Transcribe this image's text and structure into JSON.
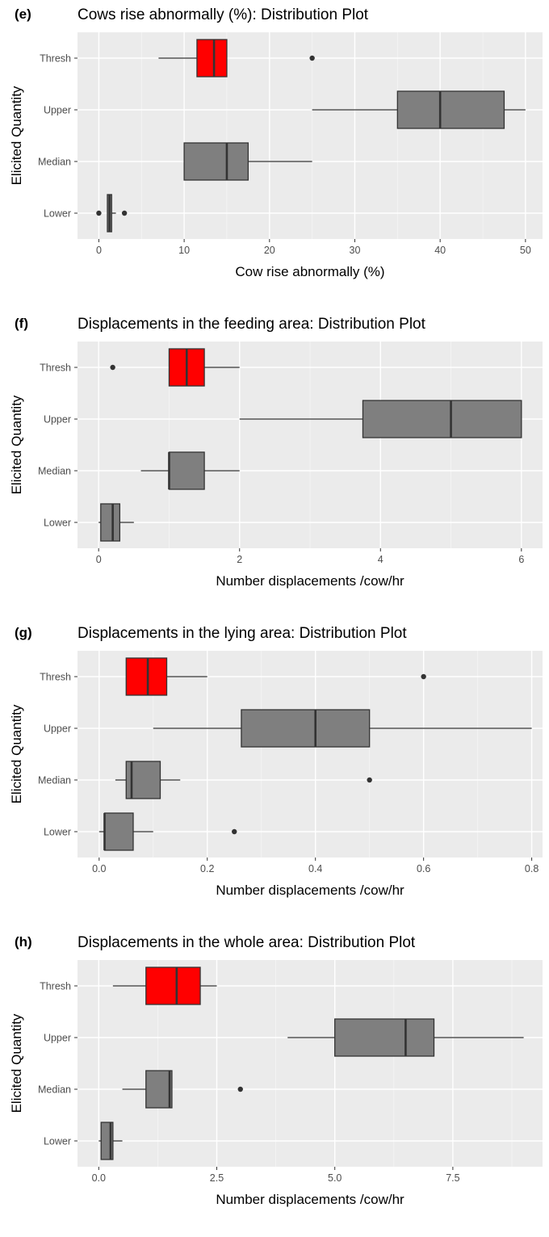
{
  "chart_data": [
    {
      "panel": "(e)",
      "type": "boxplot",
      "orientation": "horizontal",
      "title": "Cows rise abnormally (%): Distribution Plot",
      "xlabel": "Cow rise abnormally (%)",
      "ylabel": "Elicited Quantity",
      "xlim": [
        -2.5,
        52
      ],
      "xticks": [
        {
          "value": 0,
          "label": "0"
        },
        {
          "value": 10,
          "label": "10"
        },
        {
          "value": 20,
          "label": "20"
        },
        {
          "value": 30,
          "label": "30"
        },
        {
          "value": 40,
          "label": "40"
        },
        {
          "value": 50,
          "label": "50"
        }
      ],
      "grid": true,
      "categories": [
        "Thresh",
        "Upper",
        "Median",
        "Lower"
      ],
      "boxes": [
        {
          "category": "Thresh",
          "min": 7,
          "q1": 11.5,
          "median": 13.5,
          "q3": 15,
          "max": 15,
          "outliers": [
            25
          ],
          "color": "#ff0000"
        },
        {
          "category": "Upper",
          "min": 25,
          "q1": 35,
          "median": 40,
          "q3": 47.5,
          "max": 50,
          "outliers": [],
          "color": "#7f7f7f"
        },
        {
          "category": "Median",
          "min": 10,
          "q1": 10,
          "median": 15,
          "q3": 17.5,
          "max": 25,
          "outliers": [],
          "color": "#7f7f7f"
        },
        {
          "category": "Lower",
          "min": 1,
          "q1": 1,
          "median": 1.25,
          "q3": 1.5,
          "max": 2,
          "outliers": [
            0,
            3
          ],
          "color": "#7f7f7f"
        }
      ]
    },
    {
      "panel": "(f)",
      "type": "boxplot",
      "orientation": "horizontal",
      "title": "Displacements in the feeding area: Distribution Plot",
      "xlabel": "Number displacements /cow/hr",
      "ylabel": "Elicited Quantity",
      "xlim": [
        -0.3,
        6.3
      ],
      "xticks": [
        {
          "value": 0,
          "label": "0"
        },
        {
          "value": 2,
          "label": "2"
        },
        {
          "value": 4,
          "label": "4"
        },
        {
          "value": 6,
          "label": "6"
        }
      ],
      "grid": true,
      "categories": [
        "Thresh",
        "Upper",
        "Median",
        "Lower"
      ],
      "boxes": [
        {
          "category": "Thresh",
          "min": 1,
          "q1": 1,
          "median": 1.25,
          "q3": 1.5,
          "max": 2,
          "outliers": [
            0.2
          ],
          "color": "#ff0000"
        },
        {
          "category": "Upper",
          "min": 2,
          "q1": 3.75,
          "median": 5,
          "q3": 6,
          "max": 6,
          "outliers": [],
          "color": "#7f7f7f"
        },
        {
          "category": "Median",
          "min": 0.6,
          "q1": 1,
          "median": 1,
          "q3": 1.5,
          "max": 2,
          "outliers": [],
          "color": "#7f7f7f"
        },
        {
          "category": "Lower",
          "min": 0,
          "q1": 0.03,
          "median": 0.2,
          "q3": 0.3,
          "max": 0.5,
          "outliers": [],
          "color": "#7f7f7f"
        }
      ]
    },
    {
      "panel": "(g)",
      "type": "boxplot",
      "orientation": "horizontal",
      "title": "Displacements in the lying area: Distribution Plot",
      "xlabel": "Number displacements /cow/hr",
      "ylabel": "Elicited Quantity",
      "xlim": [
        -0.04,
        0.82
      ],
      "xticks": [
        {
          "value": 0,
          "label": "0.0"
        },
        {
          "value": 0.2,
          "label": "0.2"
        },
        {
          "value": 0.4,
          "label": "0.4"
        },
        {
          "value": 0.6,
          "label": "0.6"
        },
        {
          "value": 0.8,
          "label": "0.8"
        }
      ],
      "grid": true,
      "categories": [
        "Thresh",
        "Upper",
        "Median",
        "Lower"
      ],
      "boxes": [
        {
          "category": "Thresh",
          "min": 0.05,
          "q1": 0.05,
          "median": 0.09,
          "q3": 0.125,
          "max": 0.2,
          "outliers": [
            0.6
          ],
          "color": "#ff0000"
        },
        {
          "category": "Upper",
          "min": 0.1,
          "q1": 0.263,
          "median": 0.4,
          "q3": 0.5,
          "max": 0.8,
          "outliers": [],
          "color": "#7f7f7f"
        },
        {
          "category": "Median",
          "min": 0.03,
          "q1": 0.05,
          "median": 0.06,
          "q3": 0.113,
          "max": 0.15,
          "outliers": [
            0.5
          ],
          "color": "#7f7f7f"
        },
        {
          "category": "Lower",
          "min": 0,
          "q1": 0.01,
          "median": 0.01,
          "q3": 0.063,
          "max": 0.1,
          "outliers": [
            0.25
          ],
          "color": "#7f7f7f"
        }
      ]
    },
    {
      "panel": "(h)",
      "type": "boxplot",
      "orientation": "horizontal",
      "title": "Displacements in the whole area: Distribution Plot",
      "xlabel": "Number displacements /cow/hr",
      "ylabel": "Elicited Quantity",
      "xlim": [
        -0.45,
        9.4
      ],
      "xticks": [
        {
          "value": 0,
          "label": "0.0"
        },
        {
          "value": 2.5,
          "label": "2.5"
        },
        {
          "value": 5,
          "label": "5.0"
        },
        {
          "value": 7.5,
          "label": "7.5"
        }
      ],
      "grid": true,
      "categories": [
        "Thresh",
        "Upper",
        "Median",
        "Lower"
      ],
      "boxes": [
        {
          "category": "Thresh",
          "min": 0.3,
          "q1": 1,
          "median": 1.65,
          "q3": 2.15,
          "max": 2.5,
          "outliers": [],
          "color": "#ff0000"
        },
        {
          "category": "Upper",
          "min": 4,
          "q1": 5,
          "median": 6.5,
          "q3": 7.1,
          "max": 9,
          "outliers": [],
          "color": "#7f7f7f"
        },
        {
          "category": "Median",
          "min": 0.5,
          "q1": 1,
          "median": 1.5,
          "q3": 1.55,
          "max": 1.55,
          "outliers": [
            3
          ],
          "color": "#7f7f7f"
        },
        {
          "category": "Lower",
          "min": 0,
          "q1": 0.05,
          "median": 0.25,
          "q3": 0.3,
          "max": 0.5,
          "outliers": [],
          "color": "#7f7f7f"
        }
      ]
    }
  ]
}
